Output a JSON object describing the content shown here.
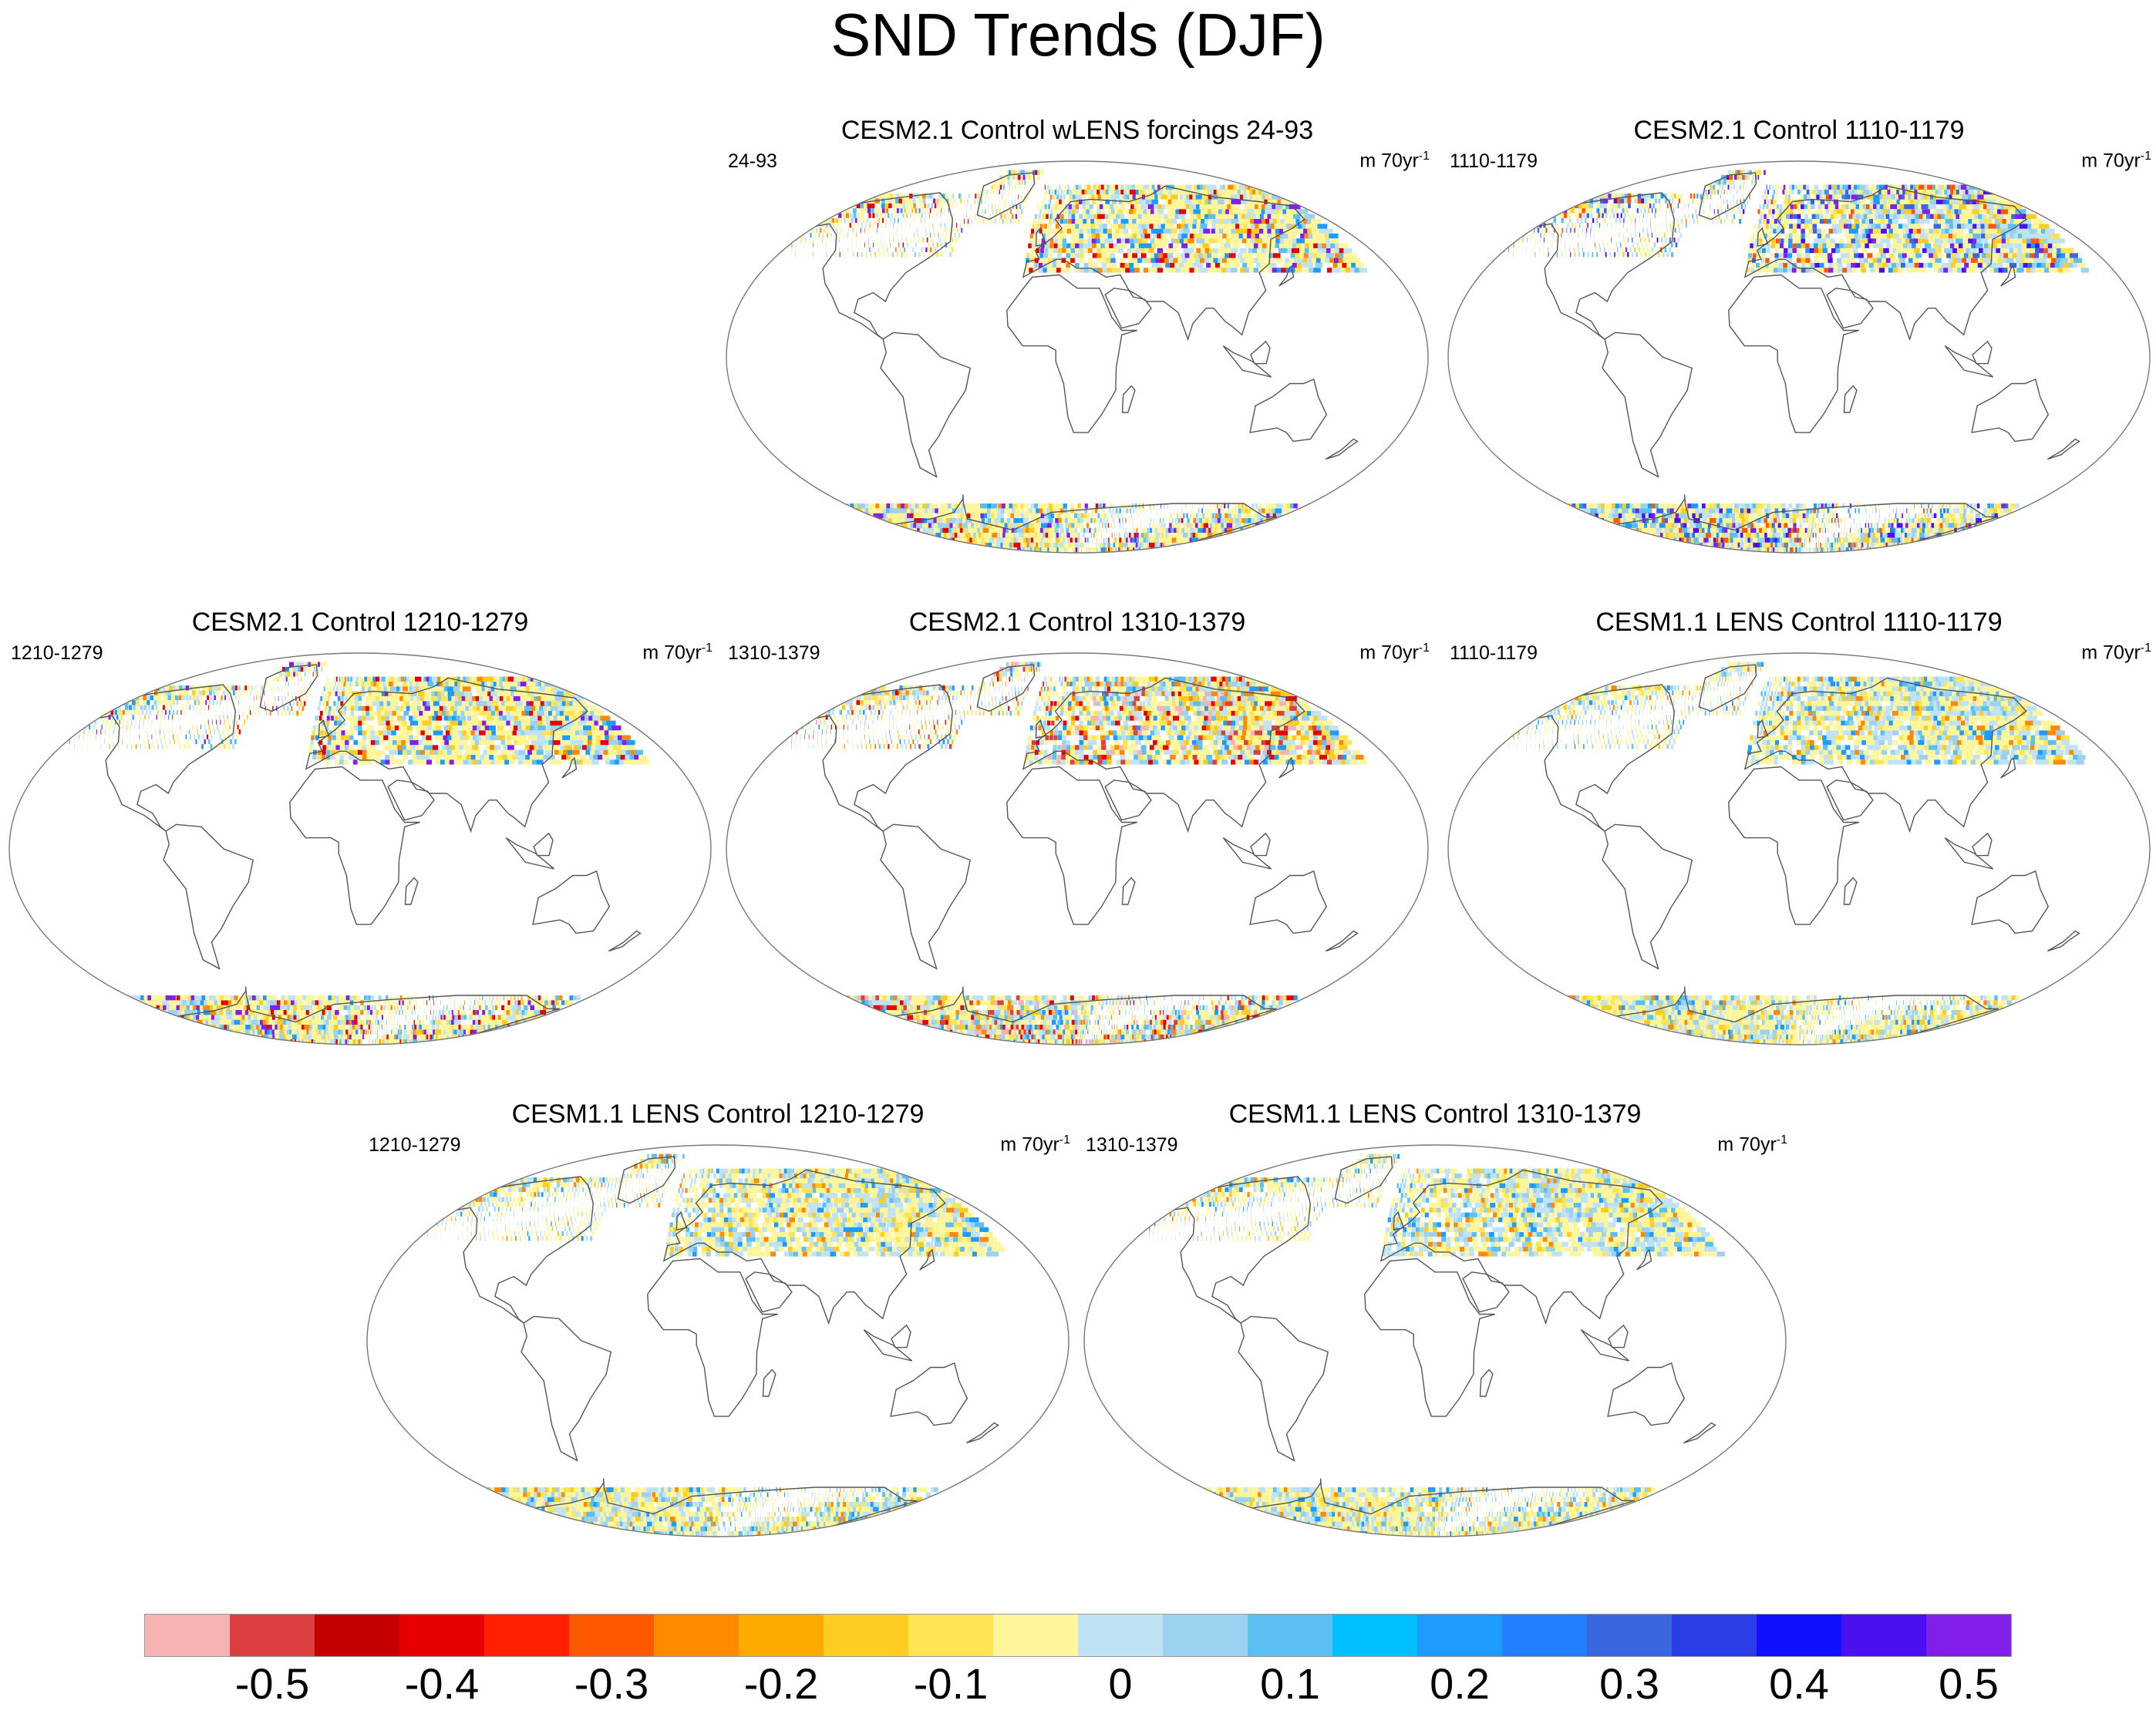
{
  "title": "SND Trends (DJF)",
  "units": {
    "prefix": "m 70yr",
    "exponent": "-1"
  },
  "panels": [
    {
      "title": "CESM2.1 Control wLENS forcings 24-93",
      "period": "24-93",
      "style": "strong"
    },
    {
      "title": "CESM2.1 Control 1110-1179",
      "period": "1110-1179",
      "style": "purple"
    },
    {
      "title": "CESM2.1 Control 1210-1279",
      "period": "1210-1279",
      "style": "strong"
    },
    {
      "title": "CESM2.1 Control 1310-1379",
      "period": "1310-1379",
      "style": "pinkred"
    },
    {
      "title": "CESM1.1 LENS Control 1110-1179",
      "period": "1110-1179",
      "style": "mild"
    },
    {
      "title": "CESM1.1 LENS Control 1210-1279",
      "period": "1210-1279",
      "style": "mild"
    },
    {
      "title": "CESM1.1 LENS Control 1310-1379",
      "period": "1310-1379",
      "style": "mild"
    }
  ],
  "colorbar": {
    "colors": [
      "#f7b3b3",
      "#db4040",
      "#c40000",
      "#e60000",
      "#ff2000",
      "#ff5800",
      "#ff8a00",
      "#ffaa00",
      "#ffcc22",
      "#ffe555",
      "#fff59a",
      "#bfe3f5",
      "#9cd2f0",
      "#5bbff2",
      "#00bfff",
      "#1e9bff",
      "#2080ff",
      "#3a66e0",
      "#2a3ee8",
      "#1010ff",
      "#4a10f0",
      "#8020e8"
    ],
    "tick_labels": [
      "-0.5",
      "-0.4",
      "-0.3",
      "-0.2",
      "-0.1",
      "0",
      "0.1",
      "0.2",
      "0.3",
      "0.4",
      "0.5"
    ]
  }
}
